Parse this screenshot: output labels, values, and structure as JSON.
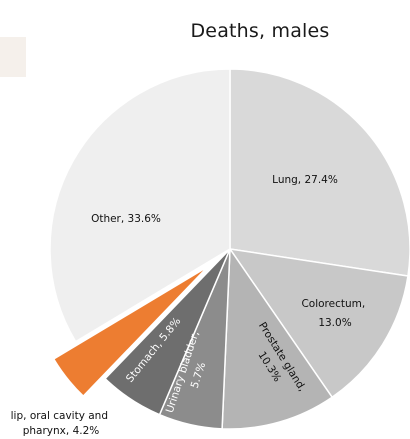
{
  "chart_data": {
    "type": "pie",
    "title": "Deaths, males",
    "slices": [
      {
        "label": "Lung",
        "value": 27.4,
        "color": "#d9d9d9",
        "text": "Lung, 27.4%"
      },
      {
        "label": "Colorectum",
        "value": 13.0,
        "color": "#c8c8c8",
        "text_lines": [
          "Colorectum,",
          "13.0%"
        ]
      },
      {
        "label": "Prostate gland",
        "value": 10.3,
        "color": "#b4b4b4",
        "text_lines": [
          "Prostate gland,",
          "10.3%"
        ]
      },
      {
        "label": "Urinary bladder",
        "value": 5.7,
        "color": "#8c8c8c",
        "text_lines": [
          "Urinary bladder,",
          "5.7%"
        ]
      },
      {
        "label": "Stomach",
        "value": 5.8,
        "color": "#6e6e6e",
        "text": "Stomach, 5.8%"
      },
      {
        "label": "lip, oral cavity and pharynx",
        "value": 4.2,
        "color": "#ed7d31",
        "exploded": true,
        "text_lines": [
          "lip, oral cavity and",
          "pharynx, 4.2%"
        ]
      },
      {
        "label": "Other",
        "value": 33.6,
        "color": "#efefef",
        "text": "Other, 33.6%"
      }
    ]
  }
}
